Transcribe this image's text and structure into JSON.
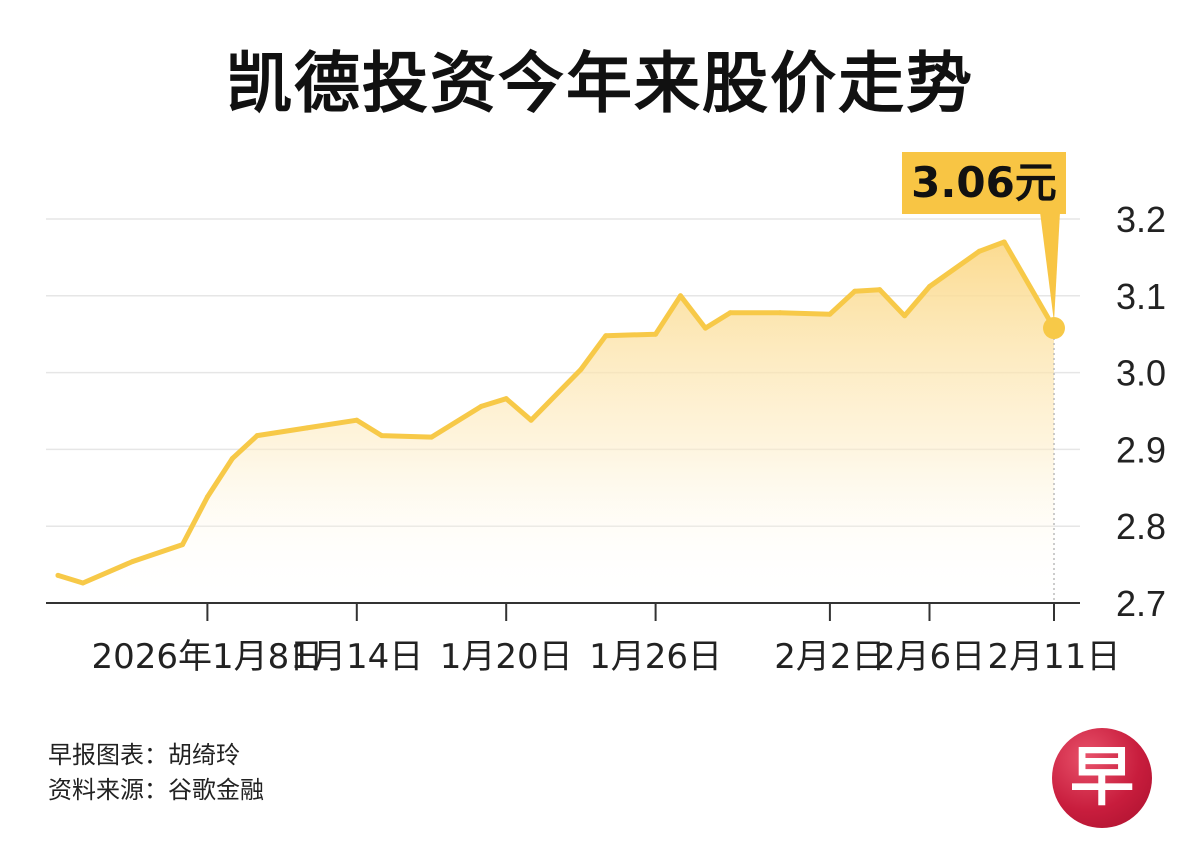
{
  "title": "凯德投资今年来股价走势",
  "callout": {
    "label": "3.06元"
  },
  "footer": {
    "line1": "早报图表：胡绮玲",
    "line2": "资料来源：谷歌金融"
  },
  "logo": {
    "text": "早"
  },
  "colors": {
    "line": "#f7c948",
    "callout_bg": "#f8c544",
    "area_top": "#fbd98a"
  },
  "chart_data": {
    "type": "area",
    "title": "凯德投资今年来股价走势",
    "xlabel": "",
    "ylabel": "",
    "ylim": [
      2.7,
      3.2
    ],
    "yticks": [
      "2.7",
      "2.8",
      "2.9",
      "3.0",
      "3.1",
      "3.2"
    ],
    "xtick_labels": [
      {
        "label": "2026年1月8日",
        "index": 6
      },
      {
        "label": "1月14日",
        "index": 12
      },
      {
        "label": "1月20日",
        "index": 18
      },
      {
        "label": "1月26日",
        "index": 24
      },
      {
        "label": "2月2日",
        "index": 31
      },
      {
        "label": "2月6日",
        "index": 35
      },
      {
        "label": "2月11日",
        "index": 40
      }
    ],
    "x_start": "2026-01-02",
    "values": [
      2.736,
      2.726,
      2.754,
      2.776,
      2.838,
      2.888,
      2.918,
      2.928,
      2.938,
      2.918,
      2.916,
      2.956,
      2.966,
      2.938,
      3.004,
      3.048,
      3.05,
      3.1,
      3.058,
      3.078,
      3.078,
      3.076,
      3.106,
      3.108,
      3.074,
      3.112,
      3.158,
      3.17,
      3.058
    ],
    "dates": [
      "2026-01-02",
      "2026-01-03",
      "2026-01-05",
      "2026-01-07",
      "2026-01-08",
      "2026-01-09",
      "2026-01-10",
      "2026-01-12",
      "2026-01-14",
      "2026-01-15",
      "2026-01-17",
      "2026-01-19",
      "2026-01-20",
      "2026-01-21",
      "2026-01-23",
      "2026-01-24",
      "2026-01-26",
      "2026-01-27",
      "2026-01-28",
      "2026-01-29",
      "2026-01-31",
      "2026-02-02",
      "2026-02-03",
      "2026-02-04",
      "2026-02-05",
      "2026-02-06",
      "2026-02-08",
      "2026-02-09",
      "2026-02-11"
    ],
    "last_value": 3.06,
    "grid": true,
    "y_axis_position": "right"
  }
}
